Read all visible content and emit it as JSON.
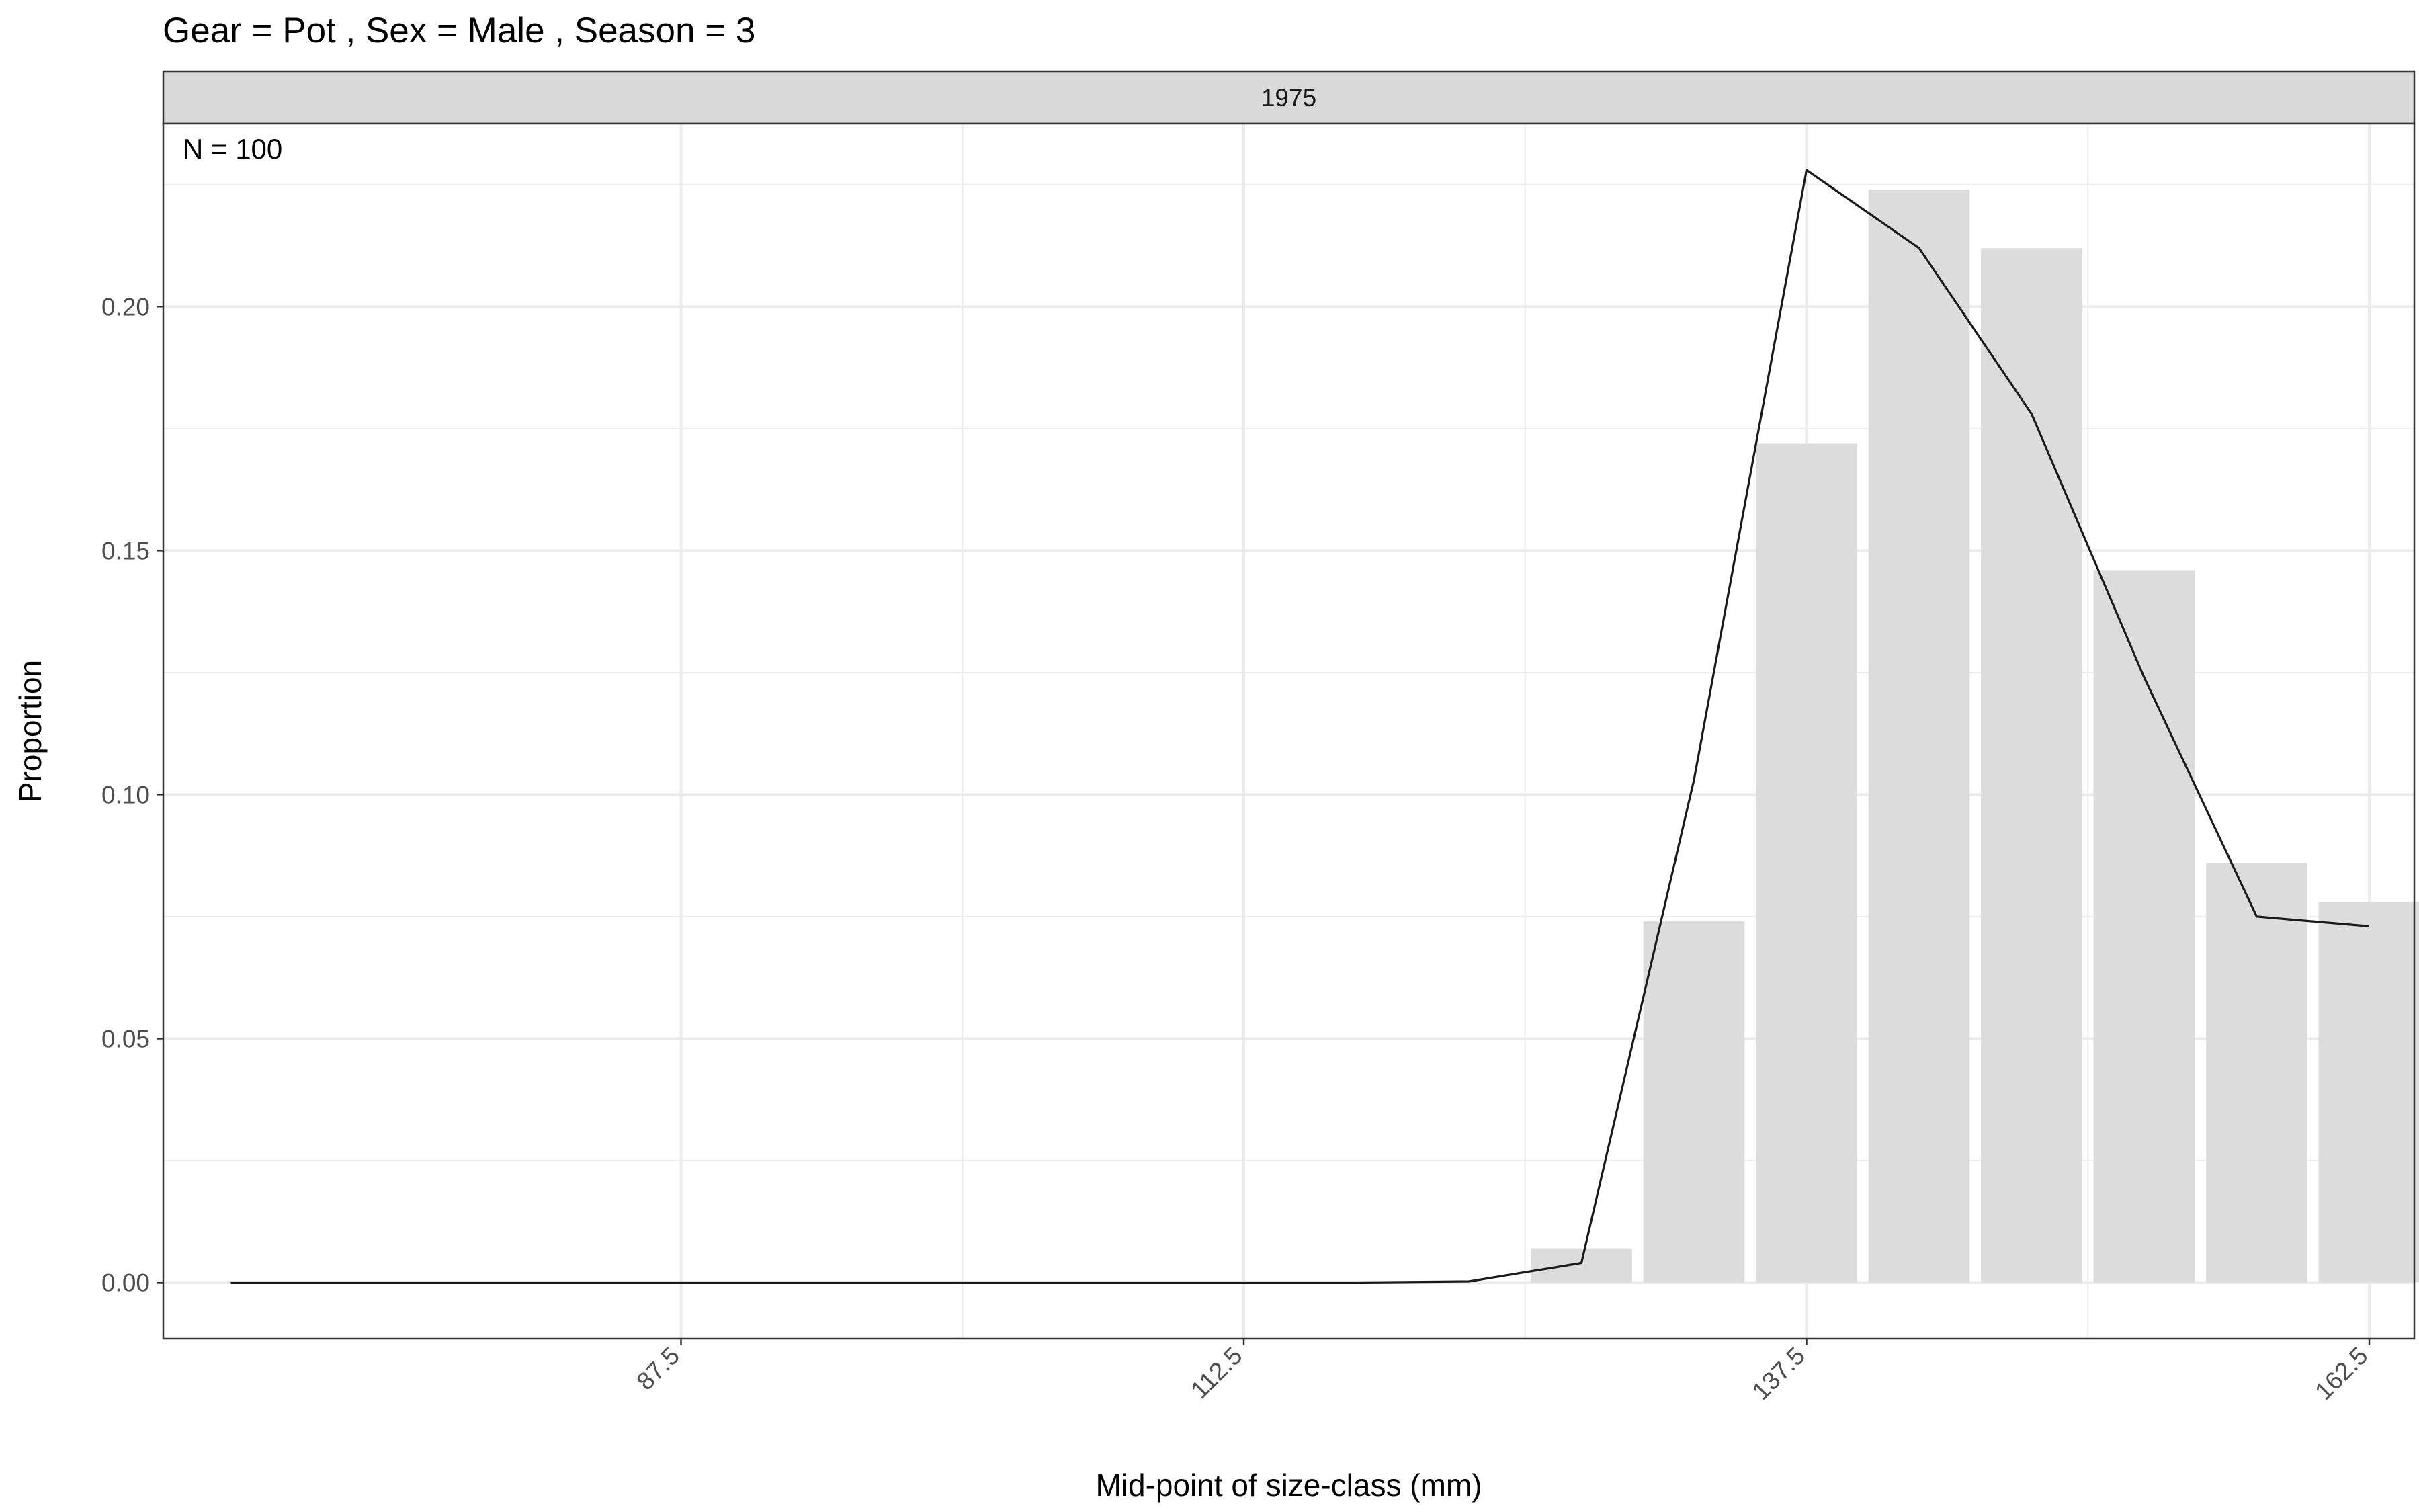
{
  "chart_data": {
    "type": "bar",
    "title": "Gear = Pot , Sex = Male , Season = 3",
    "facet_label": "1975",
    "annotation": "N = 100",
    "xlabel": "Mid-point of size-class (mm)",
    "ylabel": "Proportion",
    "xlim": [
      64.5,
      164.5
    ],
    "ylim": [
      -0.0115,
      0.2375
    ],
    "x_ticks": [
      87.5,
      112.5,
      137.5,
      162.5
    ],
    "x_tick_labels": [
      "87.5",
      "112.5",
      "137.5",
      "162.5"
    ],
    "y_ticks": [
      0.0,
      0.05,
      0.1,
      0.15,
      0.2
    ],
    "y_tick_labels": [
      "0.00",
      "0.05",
      "0.10",
      "0.15",
      "0.20"
    ],
    "y_minor_ticks": [
      0.025,
      0.075,
      0.125,
      0.175,
      0.225
    ],
    "x_minor_ticks": [
      100,
      125,
      150
    ],
    "bar_width": 4.5,
    "grid": true,
    "colors": {
      "bar_fill": "#dcdcdc",
      "line": "#1a1a1a",
      "grid": "#ebebeb",
      "strip_fill": "#d9d9d9",
      "panel_border": "#333333"
    },
    "series": [
      {
        "type": "bar",
        "x": [
          127.5,
          132.5,
          137.5,
          142.5,
          147.5,
          152.5,
          157.5,
          162.5
        ],
        "values": [
          0.007,
          0.074,
          0.172,
          0.224,
          0.212,
          0.146,
          0.086,
          0.078
        ]
      },
      {
        "type": "line",
        "x": [
          67.5,
          72.5,
          77.5,
          82.5,
          87.5,
          92.5,
          97.5,
          102.5,
          107.5,
          112.5,
          117.5,
          122.5,
          127.5,
          132.5,
          137.5,
          142.5,
          147.5,
          152.5,
          157.5,
          162.5
        ],
        "values": [
          0,
          0,
          0,
          0,
          0,
          0,
          0,
          0,
          0,
          0,
          0,
          0.0002,
          0.004,
          0.103,
          0.228,
          0.212,
          0.178,
          0.124,
          0.075,
          0.073
        ]
      }
    ]
  }
}
